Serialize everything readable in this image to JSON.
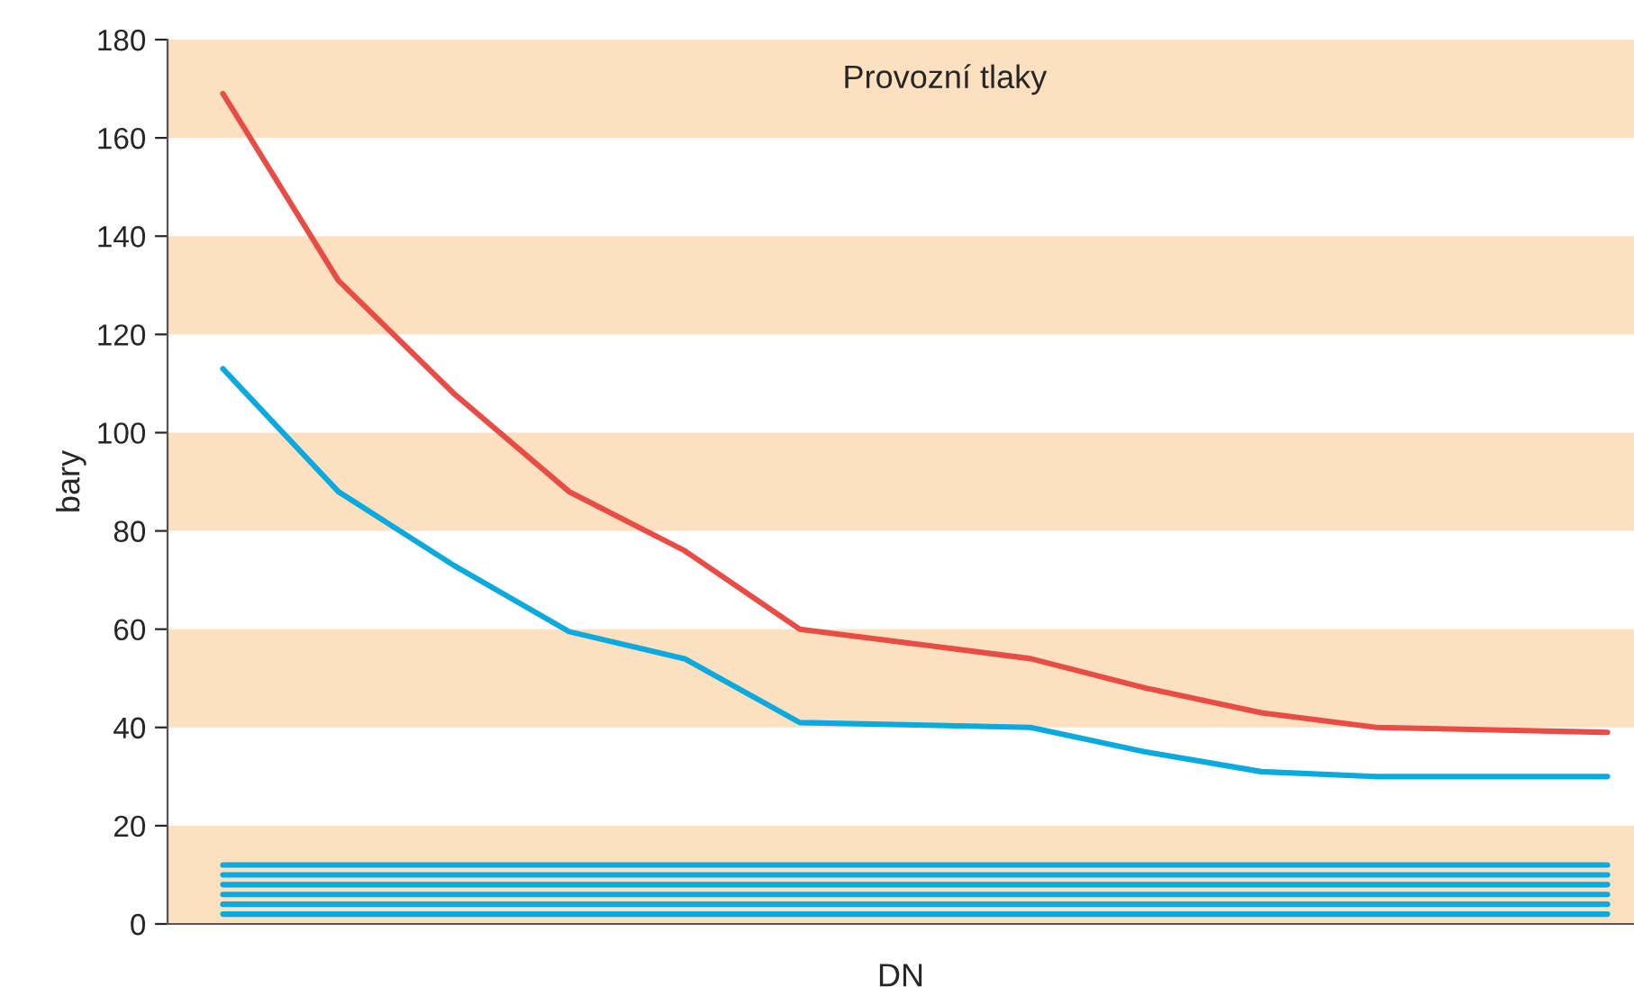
{
  "chart_data": {
    "type": "line",
    "xlabel": "DN",
    "ylabel": "bary",
    "categories": [
      null,
      null,
      null,
      null,
      null,
      null,
      null,
      null,
      null,
      null,
      null,
      null,
      null
    ],
    "series": [
      {
        "color": "#e94b45",
        "values": [
          169,
          131,
          108,
          88,
          76,
          60,
          57,
          54,
          48,
          43,
          40,
          39.5,
          39
        ]
      },
      {
        "color": "#0aa9de",
        "values": [
          113,
          88,
          73,
          59.5,
          54,
          41,
          40.5,
          40,
          35,
          31,
          30,
          30,
          30
        ]
      },
      {
        "color": "#0aa9de",
        "values": [
          12,
          12,
          12,
          12,
          12,
          12,
          12,
          12,
          12,
          12,
          12,
          12,
          12
        ]
      },
      {
        "color": "#0aa9de",
        "values": [
          10,
          10,
          10,
          10,
          10,
          10,
          10,
          10,
          10,
          10,
          10,
          10,
          10
        ]
      },
      {
        "color": "#0aa9de",
        "values": [
          8,
          8,
          8,
          8,
          8,
          8,
          8,
          8,
          8,
          8,
          8,
          8,
          8
        ]
      },
      {
        "color": "#0aa9de",
        "values": [
          6,
          6,
          6,
          6,
          6,
          6,
          6,
          6,
          6,
          6,
          6,
          6,
          6
        ]
      },
      {
        "color": "#0aa9de",
        "values": [
          4,
          4,
          4,
          4,
          4,
          4,
          4,
          4,
          4,
          4,
          4,
          4,
          4
        ]
      },
      {
        "color": "#0aa9de",
        "values": [
          2,
          2,
          2,
          2,
          2,
          2,
          2,
          2,
          2,
          2,
          2,
          2,
          2
        ]
      }
    ],
    "ylim": [
      0,
      180
    ],
    "yticks": [
      0,
      20,
      40,
      60,
      80,
      100,
      120,
      140,
      160,
      180
    ],
    "bands": [
      {
        "axis": "y",
        "from": 0,
        "to": 20,
        "color": "#fde0bf"
      },
      {
        "axis": "y",
        "from": 40,
        "to": 60,
        "color": "#fde0bf"
      },
      {
        "axis": "y",
        "from": 80,
        "to": 100,
        "color": "#fde0bf"
      },
      {
        "axis": "y",
        "from": 120,
        "to": 140,
        "color": "#fde0bf"
      },
      {
        "axis": "y",
        "from": 160,
        "to": 180,
        "color": "#fde0bf"
      }
    ],
    "annotations": [
      "Provozní tlaky"
    ],
    "grid": false,
    "marker": "none",
    "line_style": "solid"
  }
}
